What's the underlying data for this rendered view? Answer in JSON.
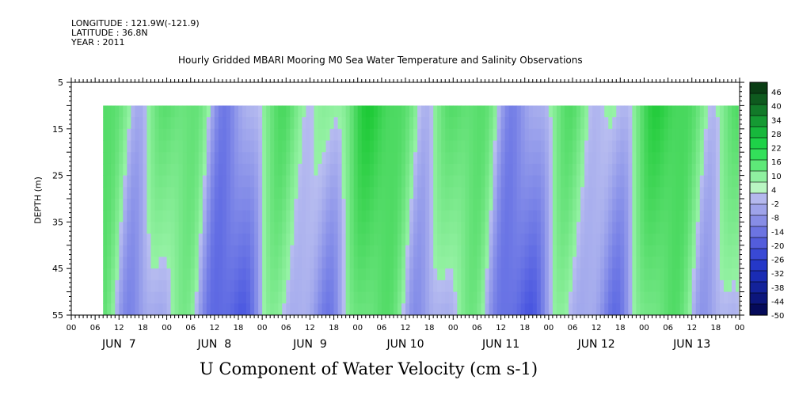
{
  "header": {
    "longitude": "LONGITUDE : 121.9W(-121.9)",
    "latitude": "LATITUDE : 36.8N",
    "year": "YEAR : 2011",
    "title": "Hourly Gridded MBARI Mooring M0 Sea Water Temperature and Salinity Observations"
  },
  "chart_data": {
    "type": "heatmap",
    "title": "Hourly Gridded MBARI Mooring M0 Sea Water Temperature and Salinity Observations",
    "subtitle": "U Component of Water Velocity (cm s-1)",
    "xlabel": "",
    "ylabel": "DEPTH (m)",
    "ylim": [
      5,
      55
    ],
    "y_inverted": true,
    "y_ticks": [
      5,
      15,
      25,
      35,
      45,
      55
    ],
    "xlim_hours": [
      0,
      168
    ],
    "x_hour_ticks": [
      "00",
      "06",
      "12",
      "18",
      "00",
      "06",
      "12",
      "18",
      "00",
      "06",
      "12",
      "18",
      "00",
      "06",
      "12",
      "18",
      "00",
      "06",
      "12",
      "18",
      "00",
      "06",
      "12",
      "18",
      "00",
      "06",
      "12",
      "18",
      "00"
    ],
    "x_day_labels": [
      "JUN  7",
      "JUN  8",
      "JUN  9",
      "JUN 10",
      "JUN 11",
      "JUN 12",
      "JUN 13"
    ],
    "data_start_hour": 8,
    "data_depth_range": [
      10,
      55
    ],
    "colorbar": {
      "labels": [
        "46",
        "40",
        "34",
        "28",
        "22",
        "16",
        "10",
        "4",
        "-2",
        "-8",
        "-14",
        "-20",
        "-26",
        "-32",
        "-38",
        "-44",
        "-50"
      ],
      "colors": [
        "#0a3d14",
        "#0e5a1e",
        "#127a29",
        "#159a33",
        "#17b83c",
        "#1ed248",
        "#33e05a",
        "#5ee878",
        "#8ff0a0",
        "#b9f6c2",
        "#b4b8ee",
        "#9ea3ea",
        "#878de6",
        "#6c74e2",
        "#535ddc",
        "#3949d5",
        "#2538c8",
        "#1a2cb4",
        "#13229a",
        "#0c167c",
        "#050a5a"
      ]
    },
    "colors": {
      "positive_light": "#8ff0a0",
      "positive_strong": "#17c040",
      "negative_light": "#b4b8ee",
      "negative_strong": "#2538c8"
    }
  }
}
